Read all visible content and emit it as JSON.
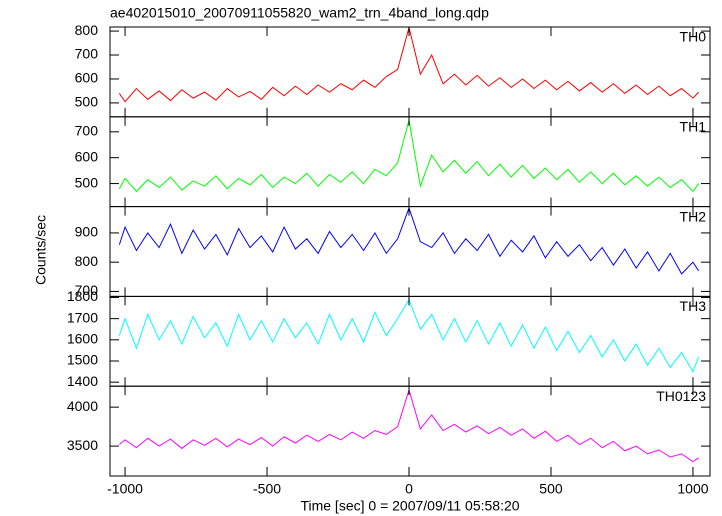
{
  "chart_data": {
    "type": "line",
    "title": "ae402015010_20070911055820_wam2_trn_4band_long.qdp",
    "xlabel": "Time [sec] 0 = 2007/09/11 05:58:20",
    "ylabel": "Counts/sec",
    "xlim": [
      -1053,
      1060
    ],
    "xticks": [
      -1000,
      -500,
      0,
      500,
      1000
    ],
    "x": [
      -1020,
      -1000,
      -960,
      -920,
      -880,
      -840,
      -800,
      -760,
      -720,
      -680,
      -640,
      -600,
      -560,
      -520,
      -480,
      -440,
      -400,
      -360,
      -320,
      -280,
      -240,
      -200,
      -160,
      -120,
      -80,
      -40,
      0,
      40,
      80,
      120,
      160,
      200,
      240,
      280,
      320,
      360,
      400,
      440,
      480,
      520,
      560,
      600,
      640,
      680,
      720,
      760,
      800,
      840,
      880,
      920,
      960,
      1000,
      1020
    ],
    "series": [
      {
        "name": "TH0",
        "color": "#ff0000",
        "ylim": [
          442,
          817
        ],
        "yticks": [
          500,
          600,
          700,
          800
        ],
        "values": [
          540,
          505,
          560,
          515,
          550,
          510,
          555,
          520,
          545,
          512,
          560,
          525,
          548,
          515,
          565,
          530,
          570,
          535,
          575,
          545,
          580,
          555,
          595,
          565,
          610,
          640,
          815,
          620,
          700,
          580,
          620,
          575,
          615,
          570,
          605,
          565,
          600,
          560,
          595,
          555,
          590,
          550,
          585,
          545,
          580,
          540,
          575,
          535,
          570,
          530,
          560,
          520,
          545
        ]
      },
      {
        "name": "TH1",
        "color": "#00ff00",
        "ylim": [
          411,
          758
        ],
        "yticks": [
          500,
          600,
          700
        ],
        "values": [
          480,
          520,
          470,
          515,
          485,
          525,
          475,
          510,
          490,
          530,
          480,
          520,
          495,
          535,
          485,
          525,
          500,
          540,
          490,
          535,
          505,
          545,
          500,
          555,
          530,
          580,
          745,
          490,
          610,
          545,
          590,
          540,
          585,
          530,
          575,
          525,
          570,
          520,
          560,
          515,
          555,
          505,
          545,
          500,
          540,
          495,
          530,
          490,
          525,
          485,
          515,
          470,
          500
        ]
      },
      {
        "name": "TH2",
        "color": "#0000ff",
        "ylim": [
          683,
          990
        ],
        "yticks": [
          700,
          800,
          900
        ],
        "values": [
          860,
          920,
          840,
          900,
          850,
          930,
          830,
          910,
          845,
          895,
          825,
          915,
          850,
          890,
          835,
          920,
          845,
          880,
          830,
          905,
          850,
          895,
          840,
          900,
          830,
          880,
          985,
          870,
          850,
          900,
          830,
          880,
          840,
          895,
          820,
          875,
          835,
          890,
          815,
          870,
          820,
          860,
          805,
          850,
          790,
          845,
          780,
          835,
          770,
          830,
          760,
          800,
          770
        ]
      },
      {
        "name": "TH3",
        "color": "#00ffff",
        "ylim": [
          1381,
          1805
        ],
        "yticks": [
          1400,
          1500,
          1600,
          1700,
          1800
        ],
        "values": [
          1620,
          1700,
          1560,
          1720,
          1600,
          1690,
          1580,
          1710,
          1610,
          1680,
          1570,
          1720,
          1600,
          1690,
          1590,
          1700,
          1610,
          1680,
          1580,
          1720,
          1600,
          1700,
          1590,
          1730,
          1620,
          1700,
          1790,
          1650,
          1720,
          1600,
          1700,
          1590,
          1690,
          1580,
          1680,
          1570,
          1670,
          1560,
          1660,
          1550,
          1640,
          1540,
          1620,
          1520,
          1600,
          1500,
          1580,
          1480,
          1560,
          1470,
          1540,
          1450,
          1520
        ]
      },
      {
        "name": "TH0123",
        "color": "#ff00ff",
        "ylim": [
          3116,
          4269
        ],
        "yticks": [
          3500,
          4000
        ],
        "values": [
          3520,
          3580,
          3480,
          3600,
          3500,
          3590,
          3470,
          3580,
          3510,
          3600,
          3490,
          3590,
          3520,
          3610,
          3500,
          3620,
          3540,
          3640,
          3560,
          3650,
          3580,
          3680,
          3600,
          3700,
          3650,
          3750,
          4220,
          3720,
          3900,
          3700,
          3780,
          3680,
          3760,
          3660,
          3740,
          3640,
          3720,
          3600,
          3690,
          3560,
          3640,
          3520,
          3600,
          3480,
          3560,
          3440,
          3500,
          3400,
          3450,
          3360,
          3400,
          3300,
          3350
        ]
      }
    ]
  }
}
